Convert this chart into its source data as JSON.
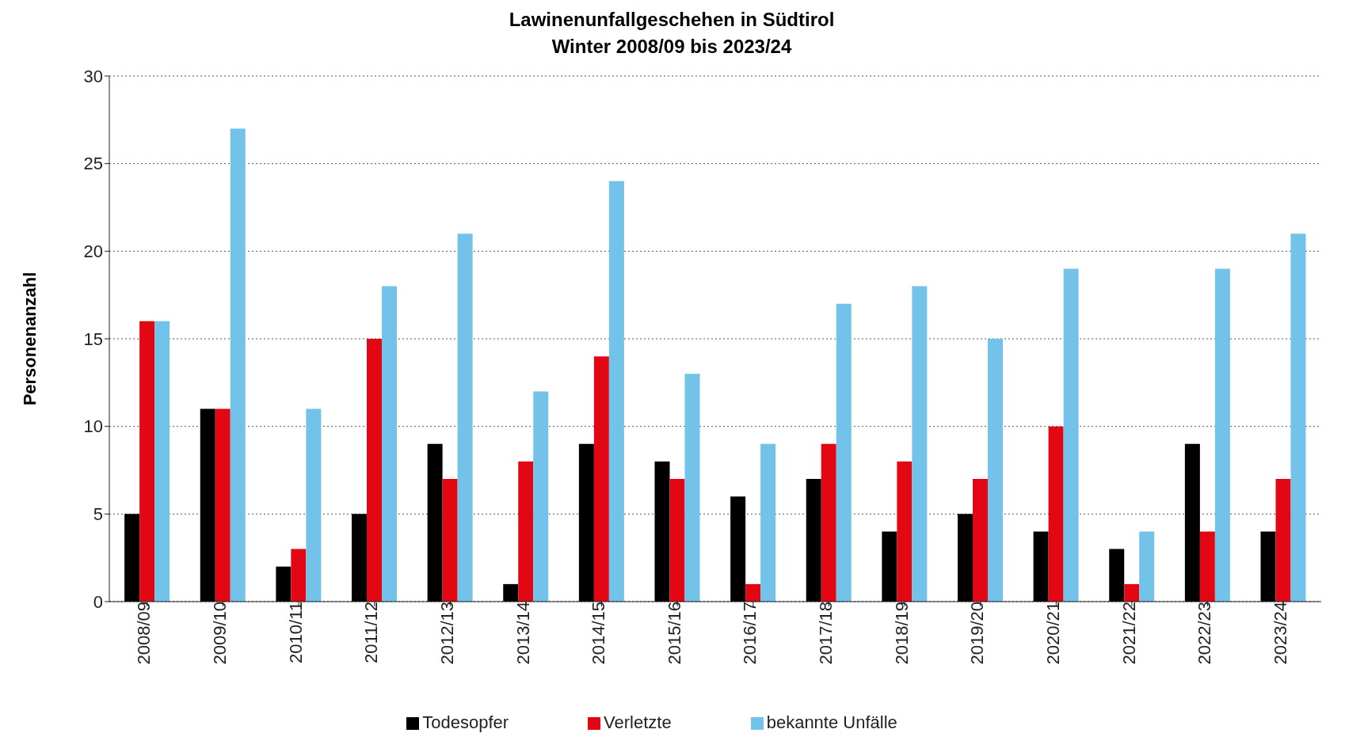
{
  "chart_data": {
    "type": "bar",
    "title": "Lawinenunfallgeschehen in Südtirol",
    "subtitle": "Winter 2008/09 bis 2023/24",
    "ylabel": "Personenanzahl",
    "categories": [
      "2008/09",
      "2009/10",
      "2010/11",
      "2011/12",
      "2012/13",
      "2013/14",
      "2014/15",
      "2015/16",
      "2016/17",
      "2017/18",
      "2018/19",
      "2019/20",
      "2020/21",
      "2021/22",
      "2022/23",
      "2023/24"
    ],
    "series": [
      {
        "name": "Todesopfer",
        "color": "#000000",
        "values": [
          5,
          11,
          2,
          5,
          9,
          1,
          9,
          8,
          6,
          7,
          4,
          5,
          4,
          3,
          9,
          4
        ]
      },
      {
        "name": "Verletzte",
        "color": "#e30613",
        "values": [
          16,
          11,
          3,
          15,
          7,
          8,
          14,
          7,
          1,
          9,
          8,
          7,
          10,
          1,
          4,
          7
        ]
      },
      {
        "name": "bekannte Unfälle",
        "color": "#72c2e9",
        "values": [
          16,
          27,
          11,
          18,
          21,
          12,
          24,
          13,
          9,
          17,
          18,
          15,
          19,
          4,
          19,
          21
        ]
      }
    ],
    "ylim": [
      0,
      30
    ],
    "yticks": [
      0,
      5,
      10,
      15,
      20,
      25,
      30
    ],
    "grid": "y",
    "legend": "bottom"
  }
}
